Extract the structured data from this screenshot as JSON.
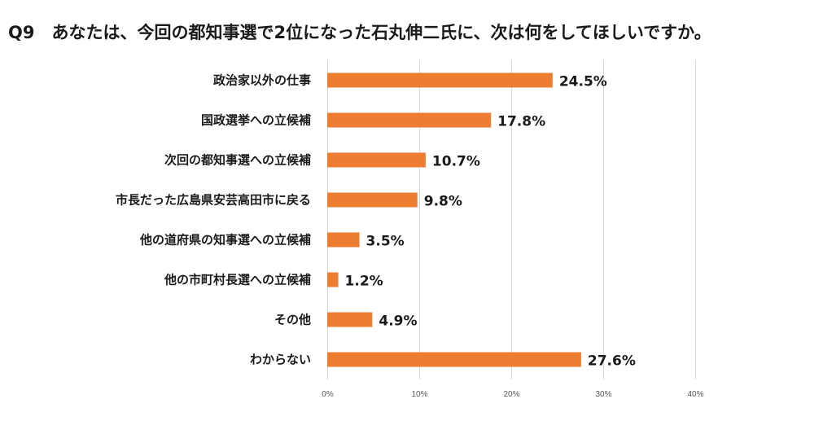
{
  "chart_data": {
    "type": "bar",
    "orientation": "horizontal",
    "title": "Q9　あなたは、今回の都知事選で2位になった石丸伸二氏に、次は何をしてほしいですか。",
    "categories": [
      "政治家以外の仕事",
      "国政選挙への立候補",
      "次回の都知事選への立候補",
      "市長だった広島県安芸高田市に戻る",
      "他の道府県の知事選への立候補",
      "他の市町村長選への立候補",
      "その他",
      "わからない"
    ],
    "values": [
      24.5,
      17.8,
      10.7,
      9.8,
      3.5,
      1.2,
      4.9,
      27.6
    ],
    "value_labels": [
      "24.5%",
      "17.8%",
      "10.7%",
      "9.8%",
      "3.5%",
      "1.2%",
      "4.9%",
      "27.6%"
    ],
    "xlim": [
      0,
      40
    ],
    "xticks": [
      0,
      10,
      20,
      30,
      40
    ],
    "xtick_labels": [
      "0%",
      "10%",
      "20%",
      "30%",
      "40%"
    ],
    "xlabel": "",
    "ylabel": "",
    "grid": true,
    "bar_color": "#ED7D31",
    "legend": "none"
  }
}
